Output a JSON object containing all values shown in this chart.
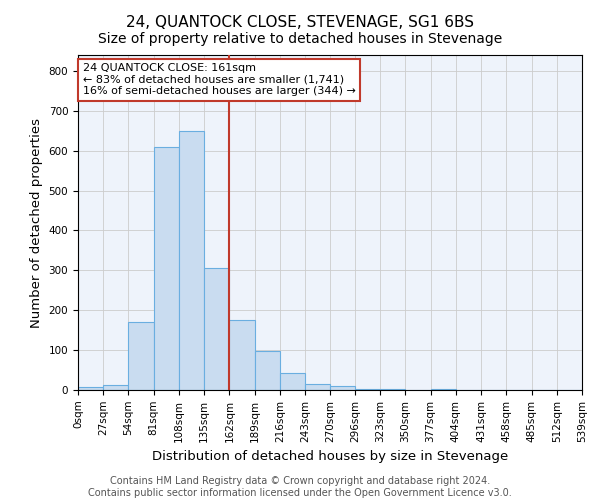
{
  "title": "24, QUANTOCK CLOSE, STEVENAGE, SG1 6BS",
  "subtitle": "Size of property relative to detached houses in Stevenage",
  "xlabel": "Distribution of detached houses by size in Stevenage",
  "ylabel": "Number of detached properties",
  "bin_edges": [
    0,
    27,
    54,
    81,
    108,
    135,
    162,
    189,
    216,
    243,
    270,
    296,
    323,
    350,
    377,
    404,
    431,
    458,
    485,
    512,
    539
  ],
  "bar_heights": [
    8,
    13,
    170,
    610,
    650,
    305,
    175,
    98,
    42,
    15,
    10,
    3,
    3,
    0,
    3,
    0,
    0,
    0,
    0,
    0
  ],
  "bar_color": "#c9dcf0",
  "bar_edgecolor": "#6aaee0",
  "vline_x": 161,
  "vline_color": "#c0392b",
  "annotation_title": "24 QUANTOCK CLOSE: 161sqm",
  "annotation_line1": "← 83% of detached houses are smaller (1,741)",
  "annotation_line2": "16% of semi-detached houses are larger (344) →",
  "annotation_box_color": "#c0392b",
  "ylim": [
    0,
    840
  ],
  "yticks": [
    0,
    100,
    200,
    300,
    400,
    500,
    600,
    700,
    800
  ],
  "footnote1": "Contains HM Land Registry data © Crown copyright and database right 2024.",
  "footnote2": "Contains public sector information licensed under the Open Government Licence v3.0.",
  "title_fontsize": 11,
  "subtitle_fontsize": 10,
  "axis_label_fontsize": 9.5,
  "tick_fontsize": 7.5,
  "annotation_fontsize": 8,
  "footnote_fontsize": 7
}
